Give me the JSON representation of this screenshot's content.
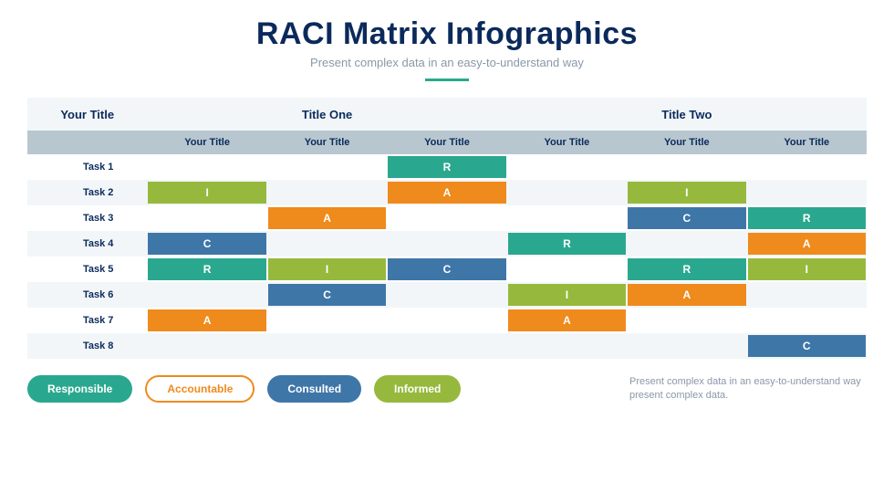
{
  "colors": {
    "responsible": "#2aa88f",
    "accountable": "#ef8a1d",
    "consulted": "#3f76a8",
    "informed": "#96b93d",
    "title": "#0b2a5b",
    "subtitle": "#8a98a8",
    "header_bg": "#f2f6f9",
    "subheader_bg": "#b8c7cf"
  },
  "header": {
    "title": "RACI Matrix Infographics",
    "subtitle": "Present complex data in an easy-to-understand way",
    "underline_color": "#2aa88f"
  },
  "matrix": {
    "type": "table",
    "row_label_header": "Your Title",
    "groups": [
      {
        "label": "Title One",
        "span": 3
      },
      {
        "label": "Title Two",
        "span": 3
      }
    ],
    "columns": [
      "Your Title",
      "Your Title",
      "Your Title",
      "Your Title",
      "Your Title",
      "Your Title"
    ],
    "rows": [
      {
        "label": "Task 1",
        "cells": [
          "",
          "",
          "R",
          "",
          "",
          ""
        ]
      },
      {
        "label": "Task 2",
        "cells": [
          "I",
          "",
          "A",
          "",
          "I",
          ""
        ]
      },
      {
        "label": "Task 3",
        "cells": [
          "",
          "A",
          "",
          "",
          "C",
          "R"
        ]
      },
      {
        "label": "Task 4",
        "cells": [
          "C",
          "",
          "",
          "R",
          "",
          "A"
        ]
      },
      {
        "label": "Task 5",
        "cells": [
          "R",
          "I",
          "C",
          "",
          "R",
          "I"
        ]
      },
      {
        "label": "Task 6",
        "cells": [
          "",
          "C",
          "",
          "I",
          "A",
          ""
        ]
      },
      {
        "label": "Task 7",
        "cells": [
          "A",
          "",
          "",
          "A",
          "",
          ""
        ]
      },
      {
        "label": "Task 8",
        "cells": [
          "",
          "",
          "",
          "",
          "",
          "C"
        ]
      }
    ],
    "code_colors": {
      "R": "#2aa88f",
      "A": "#ef8a1d",
      "C": "#3f76a8",
      "I": "#96b93d"
    }
  },
  "legend": [
    {
      "label": "Responsible",
      "color": "#2aa88f",
      "style": "fill"
    },
    {
      "label": "Accountable",
      "color": "#ef8a1d",
      "style": "outline"
    },
    {
      "label": "Consulted",
      "color": "#3f76a8",
      "style": "fill"
    },
    {
      "label": "Informed",
      "color": "#96b93d",
      "style": "fill"
    }
  ],
  "footer_text": "Present complex data in an easy-to-understand way present complex data."
}
